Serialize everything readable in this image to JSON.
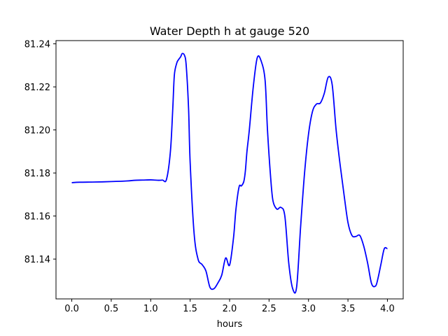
{
  "chart_data": {
    "type": "line",
    "title": "Water Depth h at gauge 520",
    "xlabel": "hours",
    "ylabel": "",
    "xlim": [
      -0.2,
      4.2
    ],
    "ylim": [
      81.1215,
      81.2415
    ],
    "xticks": [
      0.0,
      0.5,
      1.0,
      1.5,
      2.0,
      2.5,
      3.0,
      3.5,
      4.0
    ],
    "xtick_labels": [
      "0.0",
      "0.5",
      "1.0",
      "1.5",
      "2.0",
      "2.5",
      "3.0",
      "3.5",
      "4.0"
    ],
    "yticks": [
      81.14,
      81.16,
      81.18,
      81.2,
      81.22,
      81.24
    ],
    "ytick_labels": [
      "81.14",
      "81.16",
      "81.18",
      "81.20",
      "81.22",
      "81.24"
    ],
    "grid": false,
    "series": [
      {
        "color": "#0000ff",
        "x": [
          0.0,
          0.1,
          0.3,
          0.5,
          0.7,
          0.8,
          0.9,
          1.0,
          1.05,
          1.1,
          1.15,
          1.2,
          1.25,
          1.28,
          1.3,
          1.33,
          1.35,
          1.38,
          1.4,
          1.43,
          1.45,
          1.48,
          1.5,
          1.55,
          1.6,
          1.65,
          1.7,
          1.75,
          1.8,
          1.85,
          1.9,
          1.95,
          2.0,
          2.05,
          2.08,
          2.12,
          2.15,
          2.18,
          2.2,
          2.22,
          2.25,
          2.3,
          2.35,
          2.4,
          2.45,
          2.48,
          2.52,
          2.55,
          2.6,
          2.65,
          2.7,
          2.75,
          2.8,
          2.85,
          2.9,
          2.95,
          3.0,
          3.05,
          3.1,
          3.15,
          3.2,
          3.25,
          3.3,
          3.35,
          3.4,
          3.45,
          3.5,
          3.55,
          3.6,
          3.65,
          3.7,
          3.75,
          3.8,
          3.85,
          3.88,
          3.92,
          3.96,
          4.0
        ],
        "y": [
          81.1755,
          81.1757,
          81.1758,
          81.176,
          81.1763,
          81.1766,
          81.1767,
          81.1768,
          81.1767,
          81.1766,
          81.1767,
          81.177,
          81.19,
          81.21,
          81.2255,
          81.231,
          81.2325,
          81.234,
          81.2355,
          81.2345,
          81.23,
          81.21,
          81.185,
          81.152,
          81.14,
          81.1375,
          81.1345,
          81.127,
          81.1262,
          81.1288,
          81.1325,
          81.1405,
          81.1372,
          81.15,
          81.163,
          81.1735,
          81.174,
          81.176,
          81.181,
          81.19,
          81.2,
          81.22,
          81.2335,
          81.232,
          81.223,
          81.2,
          81.178,
          81.167,
          81.1632,
          81.164,
          81.16,
          81.138,
          81.1262,
          81.1272,
          81.155,
          81.18,
          81.198,
          81.2085,
          81.212,
          81.2125,
          81.217,
          81.2245,
          81.221,
          81.2,
          81.184,
          81.17,
          81.157,
          81.151,
          81.1505,
          81.151,
          81.146,
          81.138,
          81.1285,
          81.1275,
          81.131,
          81.138,
          81.1448,
          81.1448
        ]
      }
    ]
  }
}
